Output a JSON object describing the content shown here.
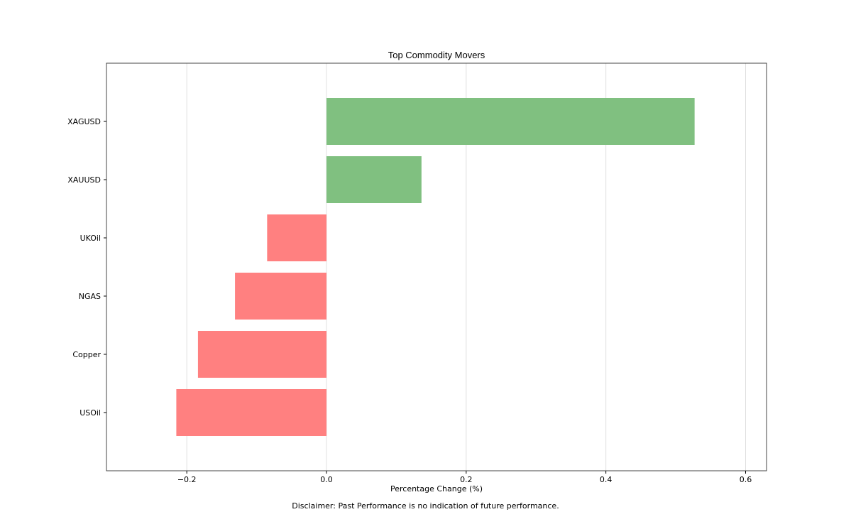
{
  "chart_data": {
    "type": "bar",
    "orientation": "horizontal",
    "title": "Top Commodity Movers",
    "xlabel": "Percentage Change (%)",
    "ylabel": "",
    "categories": [
      "XAGUSD",
      "XAUUSD",
      "UKOil",
      "NGAS",
      "Copper",
      "USOil"
    ],
    "values": [
      0.527,
      0.136,
      -0.085,
      -0.131,
      -0.184,
      -0.215
    ],
    "xlim": [
      -0.315,
      0.63
    ],
    "xticks": [
      -0.2,
      0.0,
      0.2,
      0.4,
      0.6
    ],
    "xtick_labels": [
      "−0.2",
      "0.0",
      "0.2",
      "0.4",
      "0.6"
    ],
    "grid": "vertical",
    "colors": {
      "positive": "#80c080",
      "negative": "#ff8080",
      "grid": "#e0e0e0",
      "axes": "#444444"
    }
  },
  "footer": {
    "disclaimer": "Disclaimer: Past Performance is no indication of future performance."
  }
}
